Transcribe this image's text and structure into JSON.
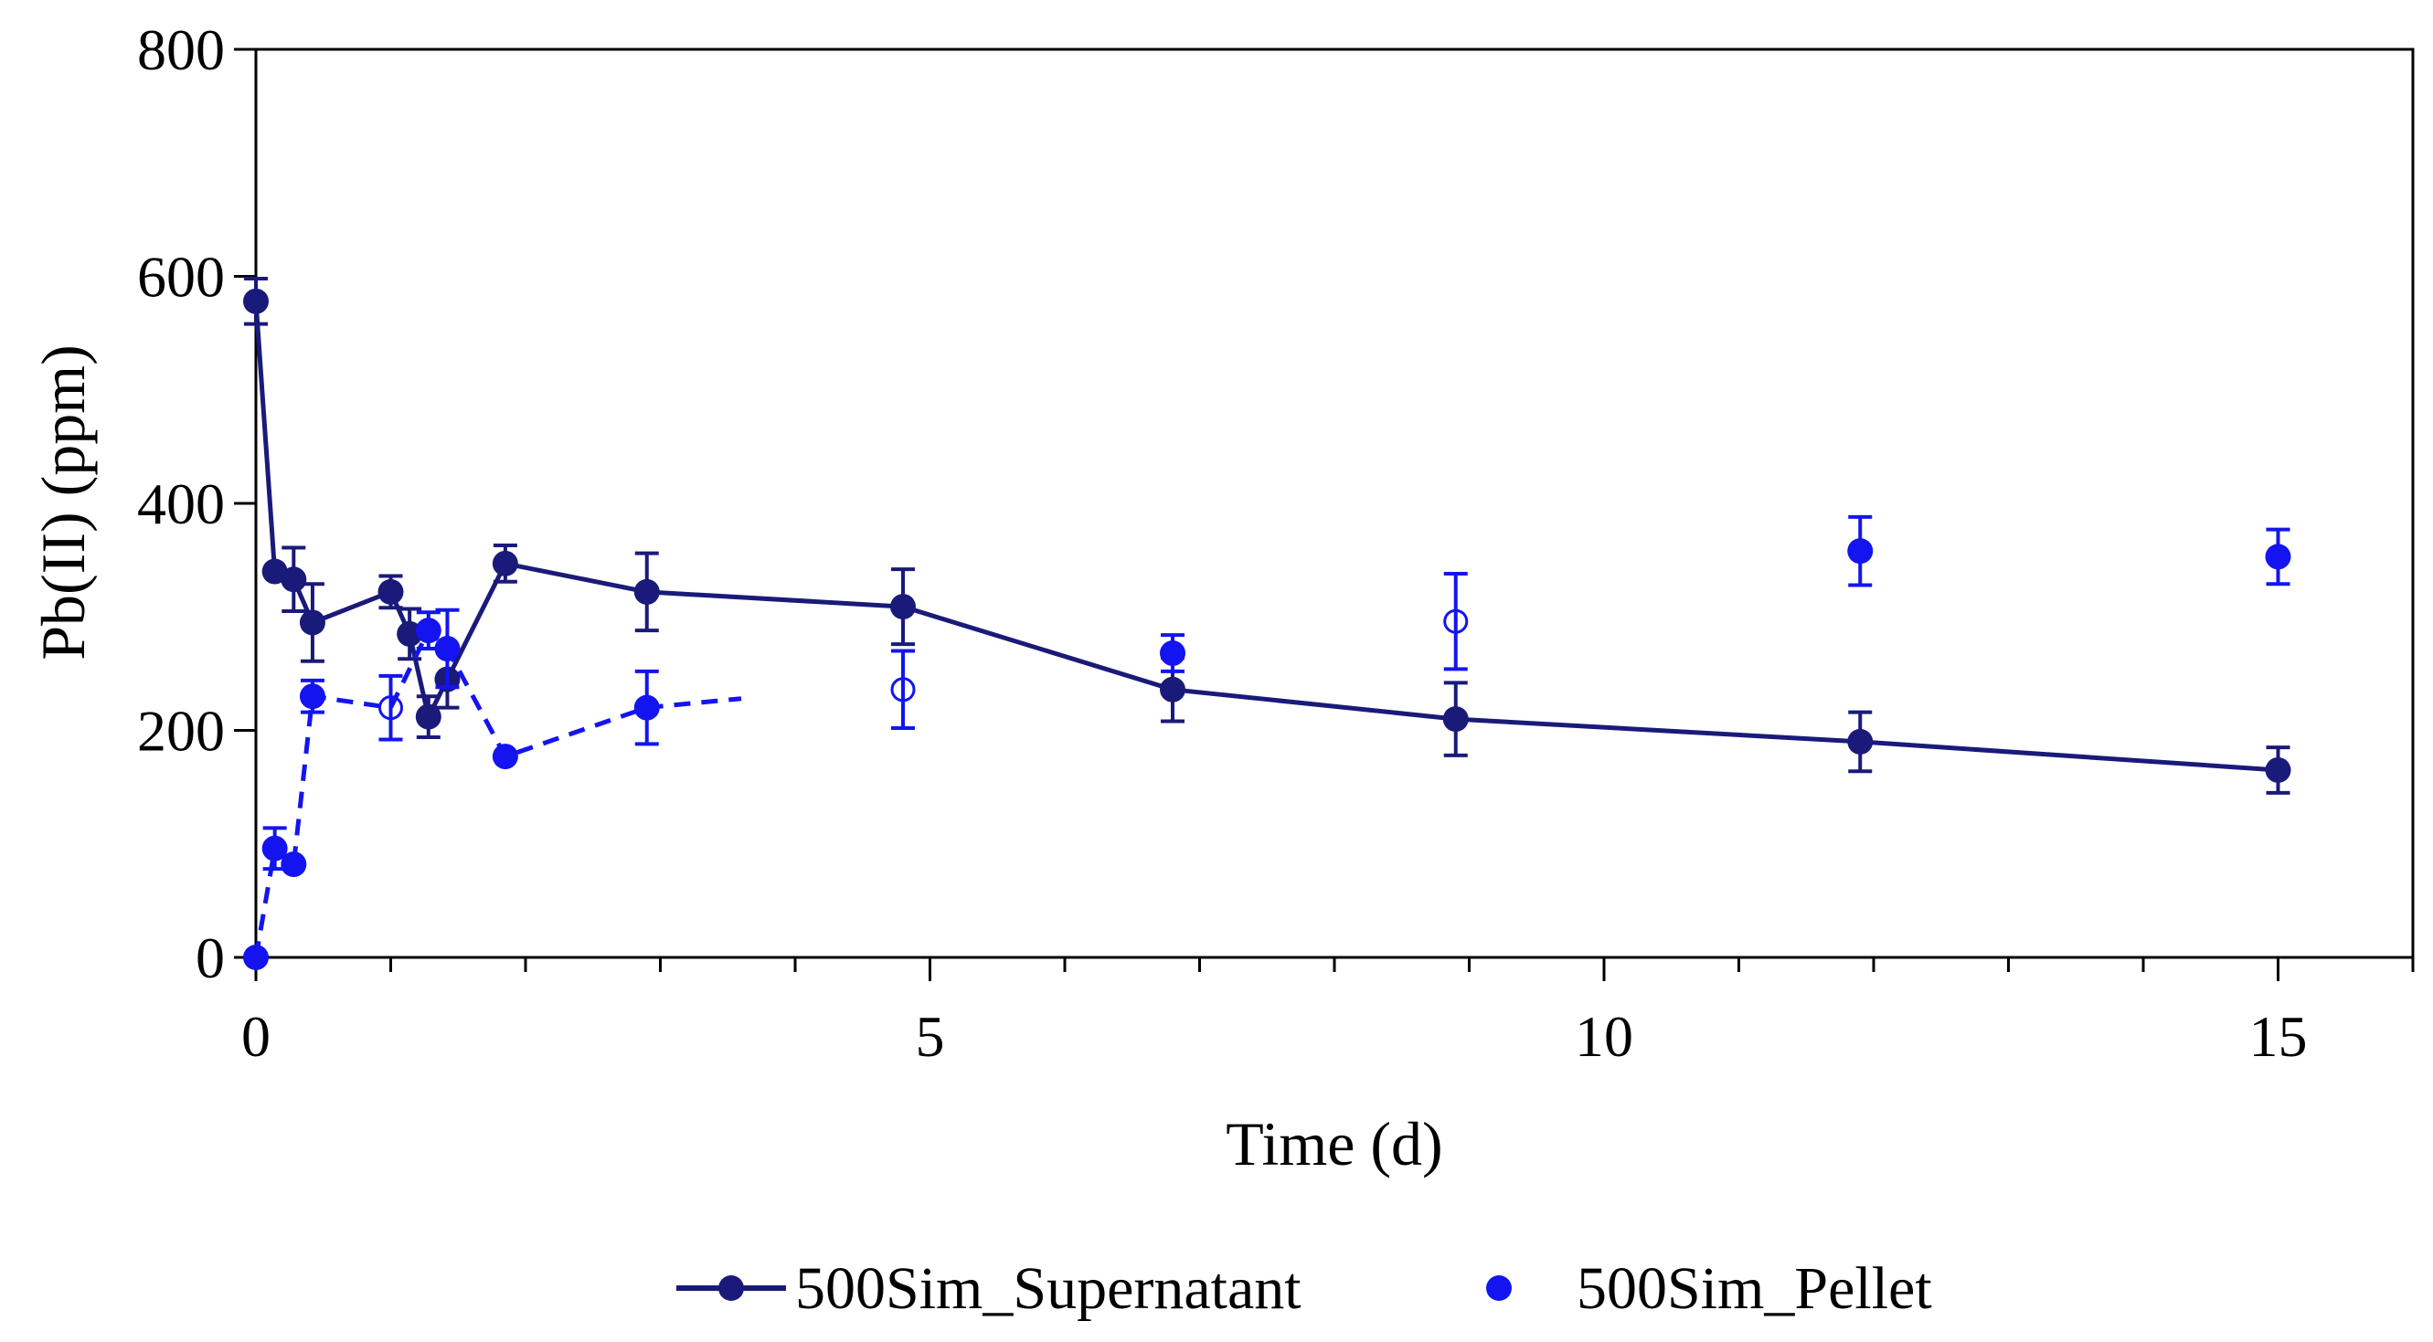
{
  "chart_data": {
    "type": "scatter",
    "title": "",
    "xlabel": "Time (d)",
    "ylabel": "Pb(II) (ppm)",
    "xlim": [
      0,
      16
    ],
    "ylim": [
      0,
      800
    ],
    "x_ticks": [
      0,
      5,
      10,
      15
    ],
    "x_tick_labels": [
      "0",
      "5",
      "10",
      "15"
    ],
    "y_ticks": [
      0,
      200,
      400,
      600,
      800
    ],
    "y_tick_labels": [
      "0",
      "200",
      "400",
      "600",
      "800"
    ],
    "grid": false,
    "legend_position": "bottom",
    "series": [
      {
        "name": "500Sim_Supernatant",
        "color": "#1a1a7a",
        "line": "solid",
        "marker": "filled-circle",
        "points": [
          {
            "x": 0.0,
            "y": 578,
            "err": 20
          },
          {
            "x": 0.14,
            "y": 340,
            "err": 0
          },
          {
            "x": 0.28,
            "y": 333,
            "err": 28
          },
          {
            "x": 0.42,
            "y": 295,
            "err": 34
          },
          {
            "x": 1.0,
            "y": 322,
            "err": 14
          },
          {
            "x": 1.14,
            "y": 285,
            "err": 22
          },
          {
            "x": 1.28,
            "y": 212,
            "err": 18
          },
          {
            "x": 1.42,
            "y": 245,
            "err": 25
          },
          {
            "x": 1.85,
            "y": 347,
            "err": 16
          },
          {
            "x": 2.9,
            "y": 322,
            "err": 34
          },
          {
            "x": 4.8,
            "y": 309,
            "err": 33
          },
          {
            "x": 6.8,
            "y": 236,
            "err": 28
          },
          {
            "x": 8.9,
            "y": 210,
            "err": 32
          },
          {
            "x": 11.9,
            "y": 190,
            "err": 26
          },
          {
            "x": 15.0,
            "y": 165,
            "err": 20
          }
        ]
      },
      {
        "name": "500Sim_Pellet",
        "color": "#1414f0",
        "line": "dashed",
        "marker": "filled-circle",
        "points": [
          {
            "x": 0.0,
            "y": 0,
            "err": 0,
            "hollow": false
          },
          {
            "x": 0.14,
            "y": 96,
            "err": 18,
            "hollow": false
          },
          {
            "x": 0.28,
            "y": 82,
            "err": 0,
            "hollow": false
          },
          {
            "x": 0.42,
            "y": 230,
            "err": 14,
            "hollow": false
          },
          {
            "x": 1.0,
            "y": 220,
            "err": 28,
            "hollow": true
          },
          {
            "x": 1.28,
            "y": 288,
            "err": 16,
            "hollow": false
          },
          {
            "x": 1.42,
            "y": 272,
            "err": 34,
            "hollow": false
          },
          {
            "x": 1.85,
            "y": 177,
            "err": 0,
            "hollow": false
          },
          {
            "x": 2.9,
            "y": 220,
            "err": 32,
            "hollow": false
          },
          {
            "x": 4.8,
            "y": 236,
            "err": 34,
            "hollow": true
          },
          {
            "x": 6.8,
            "y": 268,
            "err": 16,
            "hollow": false
          },
          {
            "x": 8.9,
            "y": 296,
            "err": 42,
            "hollow": true
          },
          {
            "x": 11.9,
            "y": 358,
            "err": 30,
            "hollow": false
          },
          {
            "x": 15.0,
            "y": 353,
            "err": 24,
            "hollow": false
          }
        ],
        "dashed_line_x_range": [
          0.0,
          3.6
        ],
        "dashed_line_end_y": 228
      }
    ]
  }
}
